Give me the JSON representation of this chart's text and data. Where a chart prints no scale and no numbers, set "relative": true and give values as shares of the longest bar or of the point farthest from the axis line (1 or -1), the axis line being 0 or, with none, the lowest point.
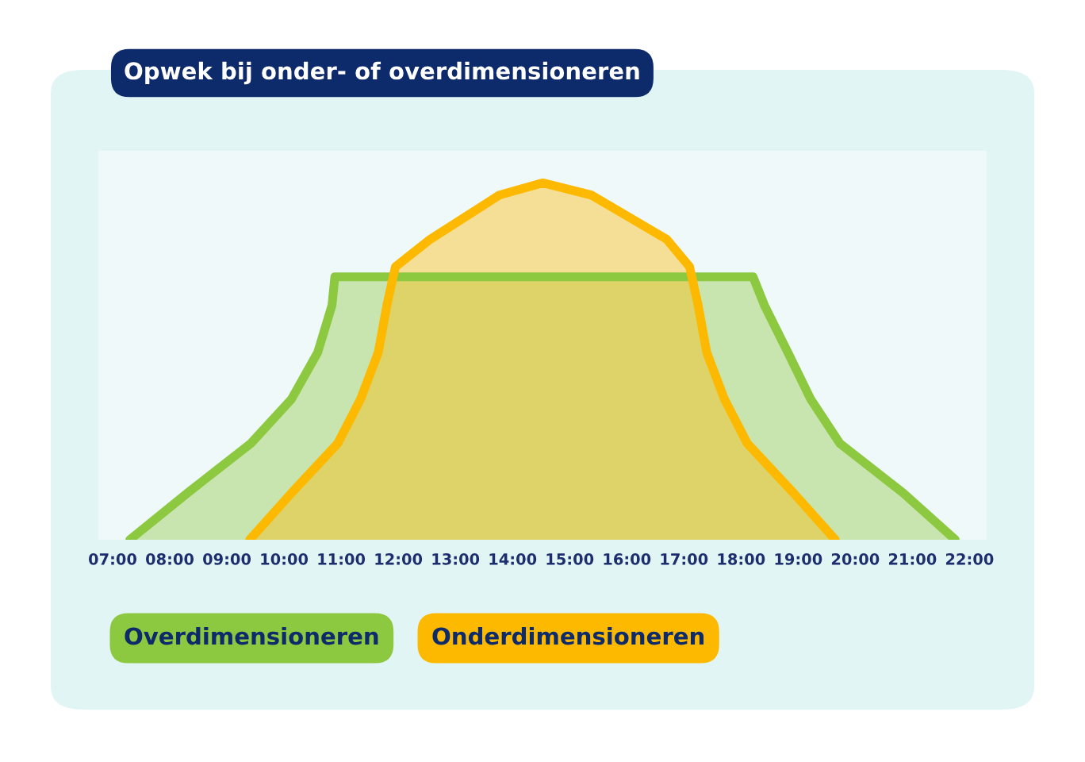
{
  "chart_data": {
    "type": "area",
    "title": "Opwek bij onder- of overdimensioneren",
    "relative": true,
    "legend": "bottom",
    "xlim": [
      6.75,
      22.3
    ],
    "xticks": [
      {
        "value": 7,
        "label": "07:00"
      },
      {
        "value": 8,
        "label": "08:00"
      },
      {
        "value": 9,
        "label": "09:00"
      },
      {
        "value": 10,
        "label": "10:00"
      },
      {
        "value": 11,
        "label": "11:00"
      },
      {
        "value": 12,
        "label": "12:00"
      },
      {
        "value": 13,
        "label": "13:00"
      },
      {
        "value": 14,
        "label": "14:00"
      },
      {
        "value": 15,
        "label": "15:00"
      },
      {
        "value": 16,
        "label": "16:00"
      },
      {
        "value": 17,
        "label": "17:00"
      },
      {
        "value": 18,
        "label": "18:00"
      },
      {
        "value": 19,
        "label": "19:00"
      },
      {
        "value": 20,
        "label": "20:00"
      },
      {
        "value": 21,
        "label": "21:00"
      },
      {
        "value": 22,
        "label": "22:00"
      }
    ],
    "series": [
      {
        "name": "Overdimensioneren",
        "color": "#8cc940",
        "x": [
          7.3,
          8.31,
          9.42,
          10.13,
          10.59,
          10.84,
          10.89,
          18.21,
          18.41,
          18.82,
          19.22,
          19.73,
          20.84,
          21.75
        ],
        "values": [
          0,
          0.131,
          0.27,
          0.394,
          0.525,
          0.657,
          0.737,
          0.737,
          0.657,
          0.525,
          0.394,
          0.27,
          0.131,
          0
        ]
      },
      {
        "name": "Onderdimensioneren",
        "color": "#fdb900",
        "x": [
          9.4,
          10.13,
          10.94,
          11.34,
          11.65,
          11.8,
          11.95,
          12.56,
          13.77,
          14.53,
          15.38,
          16.7,
          17.1,
          17.25,
          17.4,
          17.71,
          18.11,
          18.92,
          19.65
        ],
        "values": [
          0,
          0.131,
          0.27,
          0.394,
          0.525,
          0.657,
          0.765,
          0.842,
          0.966,
          1,
          0.966,
          0.842,
          0.765,
          0.657,
          0.525,
          0.394,
          0.27,
          0.131,
          0
        ]
      }
    ]
  }
}
